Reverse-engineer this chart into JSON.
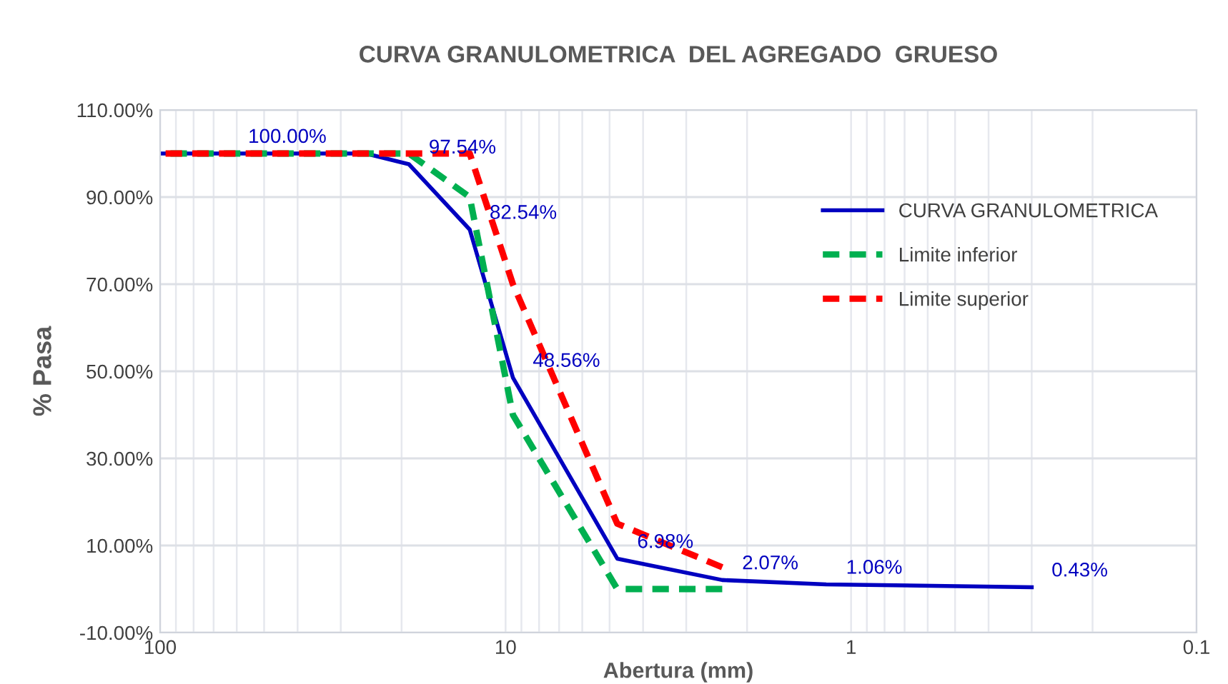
{
  "chart_data": {
    "type": "line",
    "title": "CURVA GRANULOMETRICA  DEL AGREGADO  GRUESO",
    "xlabel": "Abertura (mm)",
    "ylabel": "% Pasa",
    "log": "x",
    "xlim": [
      100,
      0.1
    ],
    "xticks": [
      100,
      10,
      1,
      0.1
    ],
    "ylim": [
      -10,
      110
    ],
    "yticks": [
      {
        "value": -10,
        "label": "-10.00%"
      },
      {
        "value": 10,
        "label": "10.00%"
      },
      {
        "value": 30,
        "label": "30.00%"
      },
      {
        "value": 50,
        "label": "50.00%"
      },
      {
        "value": 70,
        "label": "70.00%"
      },
      {
        "value": 90,
        "label": "90.00%"
      },
      {
        "value": 110,
        "label": "110.00%"
      }
    ],
    "grid": true,
    "legend": "right",
    "marker": "none",
    "series": [
      {
        "name": "CURVA GRANULOMETRICA",
        "color": "#0000c0",
        "line_style": "solid",
        "x": [
          100,
          63.5,
          25.4,
          19.05,
          12.7,
          9.525,
          4.75,
          2.36,
          1.18,
          0.3
        ],
        "values": [
          100,
          100,
          100,
          97.54,
          82.54,
          48.56,
          6.98,
          2.07,
          1.06,
          0.43
        ],
        "value_labels": [
          null,
          "100.00%",
          null,
          "97.54%",
          "82.54%",
          "48.56%",
          "6.98%",
          "2.07%",
          "1.06%",
          "0.43%"
        ]
      },
      {
        "name": "Limite inferior",
        "color": "#00b050",
        "line_style": "dashed",
        "x": [
          100,
          19.05,
          12.7,
          9.525,
          4.75,
          2.36
        ],
        "values": [
          100,
          100,
          90,
          40,
          0,
          0
        ]
      },
      {
        "name": "Limite superior",
        "color": "#ff0000",
        "line_style": "dashed",
        "x": [
          100,
          19.05,
          12.7,
          9.525,
          4.75,
          2.36
        ],
        "values": [
          100,
          100,
          100,
          70,
          15,
          5
        ]
      }
    ]
  }
}
